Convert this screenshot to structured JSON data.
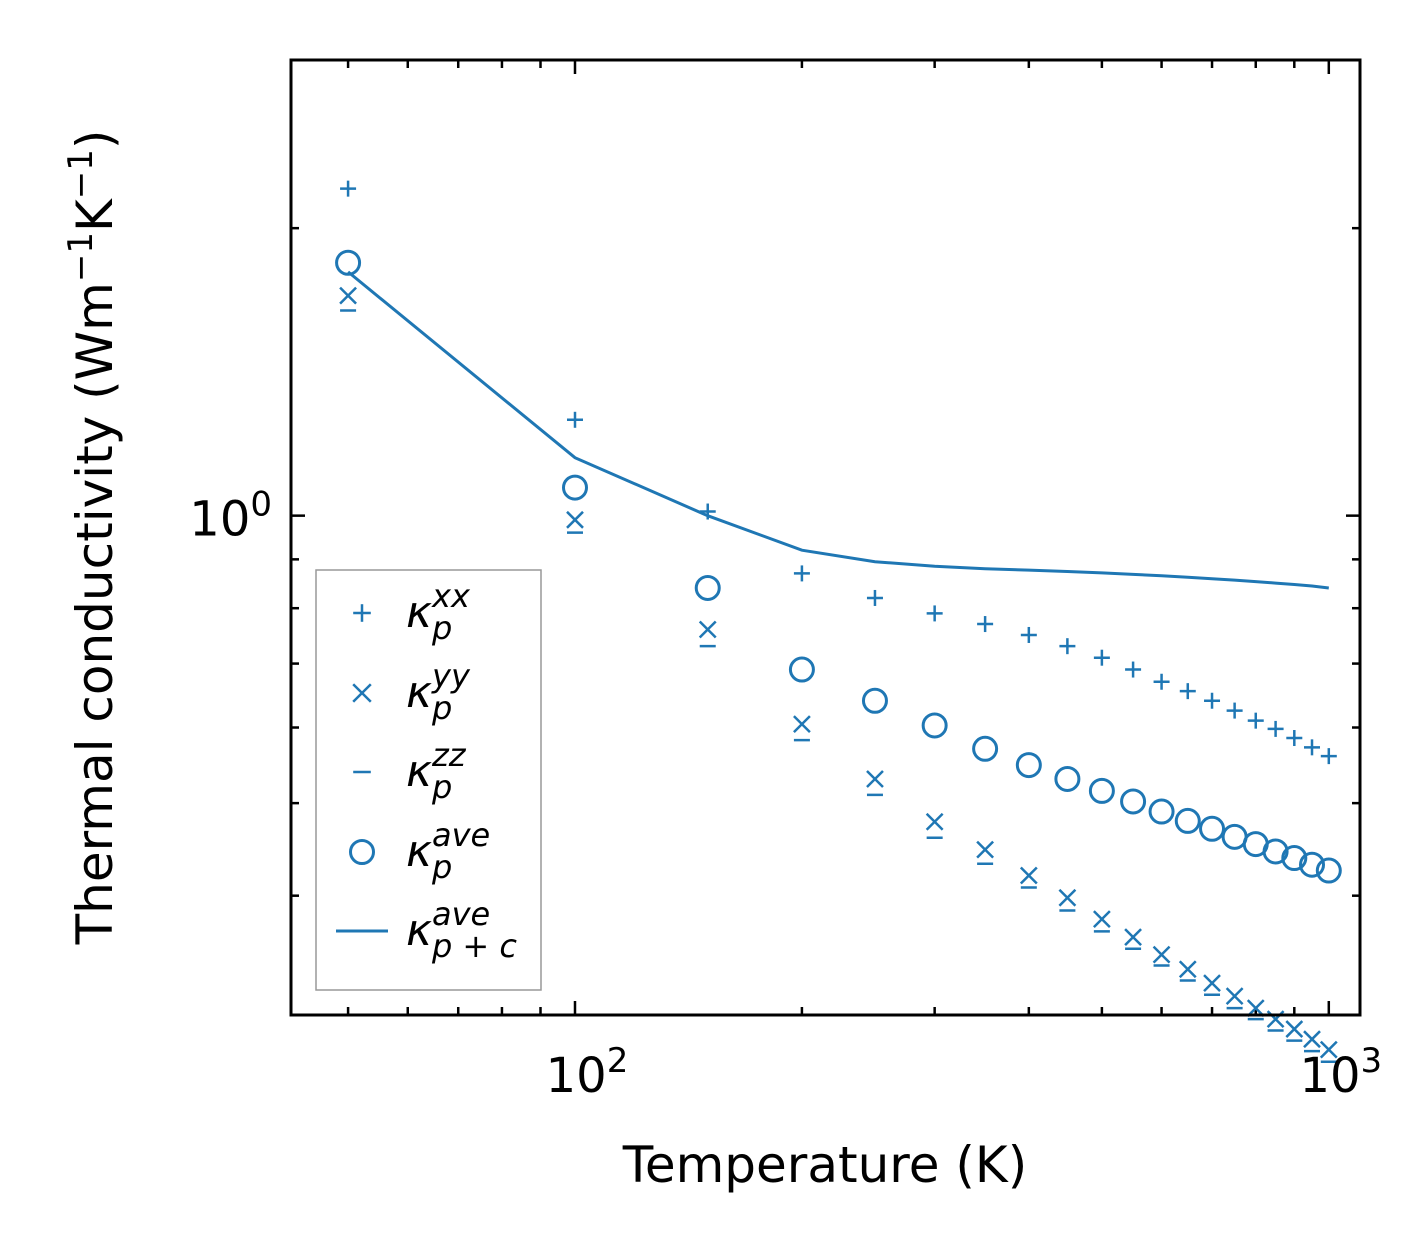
{
  "chart_data": {
    "type": "scatter",
    "xscale": "log",
    "yscale": "log",
    "xlabel": "Temperature (K)",
    "ylabel": "Thermal conductivity (Wm",
    "ylabel_parts": {
      "pre": "Thermal conductivity (Wm",
      "exp1": "−1",
      "mid": "K",
      "exp2": "−1",
      "post": ")"
    },
    "xlim": [
      42,
      1100
    ],
    "ylim": [
      0.3,
      3.0
    ],
    "x_major_ticks": [
      {
        "value": 100,
        "base": "10",
        "exp": "2"
      },
      {
        "value": 1000,
        "base": "10",
        "exp": "3"
      }
    ],
    "y_major_ticks": [
      {
        "value": 1.0,
        "base": "10",
        "exp": "0"
      }
    ],
    "x": [
      50,
      100,
      150,
      200,
      250,
      300,
      350,
      400,
      450,
      500,
      550,
      600,
      650,
      700,
      750,
      800,
      850,
      900,
      950,
      1000
    ],
    "color": "#1f77b4",
    "series": [
      {
        "name": "xx",
        "label_sup": "xx",
        "label_sub": "p",
        "marker": "plus",
        "values": [
          2.2,
          1.26,
          1.01,
          0.87,
          0.82,
          0.79,
          0.77,
          0.75,
          0.73,
          0.71,
          0.69,
          0.67,
          0.655,
          0.64,
          0.625,
          0.61,
          0.598,
          0.585,
          0.572,
          0.56
        ]
      },
      {
        "name": "yy",
        "label_sup": "yy",
        "label_sub": "p",
        "marker": "x",
        "values": [
          1.7,
          0.99,
          0.76,
          0.605,
          0.53,
          0.478,
          0.447,
          0.42,
          0.398,
          0.378,
          0.362,
          0.347,
          0.335,
          0.324,
          0.314,
          0.305,
          0.297,
          0.29,
          0.283,
          0.276
        ]
      },
      {
        "name": "zz",
        "label_sup": "zz",
        "label_sub": "p",
        "marker": "hline",
        "values": [
          1.64,
          0.96,
          0.73,
          0.582,
          0.51,
          0.46,
          0.432,
          0.408,
          0.386,
          0.367,
          0.352,
          0.338,
          0.326,
          0.315,
          0.305,
          0.297,
          0.289,
          0.282,
          0.275,
          0.268
        ]
      },
      {
        "name": "ave",
        "label_sup": "ave",
        "label_sub": "p",
        "marker": "circle",
        "values": [
          1.84,
          1.07,
          0.84,
          0.69,
          0.64,
          0.603,
          0.57,
          0.548,
          0.53,
          0.515,
          0.502,
          0.49,
          0.479,
          0.47,
          0.461,
          0.453,
          0.445,
          0.438,
          0.431,
          0.425
        ]
      },
      {
        "name": "ave p+c",
        "label_sup": "ave",
        "label_sub": "p + c",
        "marker": "line",
        "values": [
          1.8,
          1.15,
          1.0,
          0.92,
          0.895,
          0.885,
          0.88,
          0.877,
          0.874,
          0.871,
          0.868,
          0.865,
          0.862,
          0.859,
          0.856,
          0.853,
          0.85,
          0.847,
          0.844,
          0.84
        ]
      }
    ],
    "legend": {
      "position": "lower-left",
      "symbol": "κ"
    }
  }
}
